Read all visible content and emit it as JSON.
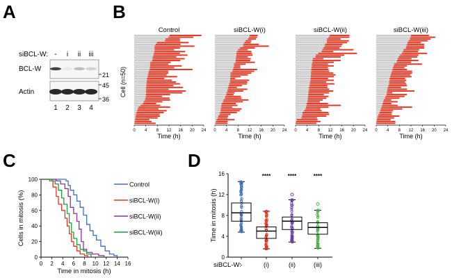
{
  "panels": {
    "A": {
      "letter": "A"
    },
    "B": {
      "letter": "B"
    },
    "C": {
      "letter": "C"
    },
    "D": {
      "letter": "D"
    }
  },
  "blot": {
    "condition_label": "siBCL-W:",
    "lanes": [
      "-",
      "i",
      "ii",
      "iii"
    ],
    "lane_numbers": [
      "1",
      "2",
      "3",
      "4"
    ],
    "rows": [
      {
        "label": "BCL-W",
        "markers": [
          "21"
        ],
        "band_intensity": [
          0.85,
          0.1,
          0.3,
          0.2
        ]
      },
      {
        "label": "Actin",
        "markers": [
          "45",
          "36"
        ],
        "band_intensity": [
          0.95,
          0.95,
          0.95,
          0.95
        ]
      }
    ]
  },
  "chart_data": [
    {
      "type": "bar",
      "panel": "B",
      "subtype": "cell-fate timeline (stacked horizontal: interphase gray, mitosis red)",
      "ylabel": "Cell (n=50)",
      "xlabel": "Time (h)",
      "xlim": [
        0,
        24
      ],
      "xticks": [
        0,
        4,
        8,
        12,
        16,
        20,
        24
      ],
      "colors": {
        "interphase": "#c8c8c8",
        "mitosis": "#e8321e"
      },
      "subpanels": [
        {
          "title": "Control",
          "mitosis_start": [
            12.2,
            11.8,
            10.8,
            10.6,
            7.8,
            7.4,
            7.0,
            7.0,
            7.0,
            6.9,
            6.8,
            6.6,
            6.4,
            6.3,
            6.2,
            5.6,
            5.5,
            5.5,
            5.4,
            5.3,
            5.0,
            4.9,
            4.8,
            4.6,
            4.4,
            4.3,
            4.3,
            4.2,
            4.2,
            4.1,
            4.1,
            4.1,
            4.1,
            4.0,
            4.0,
            3.8,
            3.7,
            3.3,
            3.0,
            2.2,
            1.5,
            1.2,
            1.0,
            0.8,
            0.6,
            0.5,
            0.4,
            0.3,
            0.2,
            0.1
          ],
          "mitosis_end": [
            23.2,
            20.4,
            15.8,
            15.8,
            18.8,
            16.0,
            20.8,
            15.8,
            13.8,
            17.6,
            15.8,
            18.4,
            14.6,
            17.4,
            15.9,
            12.6,
            11.8,
            16.4,
            13.8,
            20.1,
            11.8,
            11.8,
            11.2,
            14.8,
            10.4,
            13.0,
            14.4,
            15.8,
            13.5,
            16.8,
            11.9,
            17.8,
            16.6,
            12.4,
            9.6,
            12.2,
            12.4,
            9.7,
            7.6,
            9.0,
            12.4,
            8.4,
            11.2,
            10.2,
            8.8,
            8.9,
            8.1,
            5.2,
            6.0,
            7.4
          ]
        },
        {
          "title": "siBCL-W(i)",
          "mitosis_start": [
            12.0,
            11.8,
            11.4,
            10.6,
            10.2,
            9.8,
            9.7,
            8.6,
            8.0,
            7.6,
            7.4,
            7.4,
            7.3,
            7.2,
            7.2,
            7.1,
            6.6,
            6.6,
            6.4,
            6.2,
            6.0,
            5.4,
            5.4,
            5.3,
            5.3,
            5.2,
            5.2,
            4.9,
            4.8,
            4.6,
            4.4,
            4.3,
            4.0,
            3.9,
            3.6,
            3.4,
            3.0,
            2.8,
            2.4,
            2.2,
            2.2,
            2.0,
            2.0,
            1.8,
            1.6,
            1.2,
            1.0,
            0.6,
            0.4,
            0.2
          ],
          "mitosis_end": [
            14.8,
            14.6,
            14.2,
            12.6,
            12.4,
            15.2,
            18.6,
            13.8,
            11.4,
            12.6,
            12.8,
            13.0,
            11.4,
            12.4,
            12.2,
            13.8,
            10.6,
            8.8,
            8.8,
            14.6,
            13.6,
            12.6,
            11.4,
            8.9,
            7.0,
            11.8,
            11.2,
            11.1,
            9.4,
            7.6,
            11.2,
            9.8,
            6.8,
            6.4,
            9.0,
            9.2,
            11.6,
            9.6,
            7.2,
            7.8,
            6.0,
            9.2,
            8.6,
            7.6,
            5.4,
            4.6,
            4.4,
            6.8,
            4.4,
            4.4
          ]
        },
        {
          "title": "siBCL-W(ii)",
          "mitosis_start": [
            11.8,
            11.4,
            10.9,
            10.8,
            10.8,
            10.2,
            10.0,
            9.6,
            9.2,
            9.0,
            7.8,
            7.0,
            6.8,
            6.0,
            5.8,
            5.8,
            5.6,
            5.6,
            5.5,
            5.4,
            5.4,
            5.3,
            5.3,
            5.2,
            5.2,
            5.1,
            5.0,
            4.9,
            4.8,
            4.6,
            4.6,
            4.5,
            4.4,
            4.4,
            4.3,
            4.2,
            4.2,
            4.1,
            3.8,
            3.8,
            3.6,
            3.4,
            3.0,
            2.4,
            2.4,
            2.2,
            2.0,
            0.4,
            0.2,
            0.0
          ],
          "mitosis_end": [
            18.6,
            18.6,
            15.6,
            18.4,
            17.8,
            16.2,
            15.8,
            15.2,
            20.0,
            13.0,
            21.2,
            16.8,
            15.6,
            9.6,
            15.6,
            13.2,
            11.2,
            13.2,
            11.2,
            11.4,
            11.6,
            13.0,
            13.8,
            13.2,
            11.2,
            13.2,
            10.6,
            13.4,
            11.0,
            11.0,
            11.6,
            13.0,
            11.6,
            9.8,
            11.4,
            10.6,
            9.4,
            8.4,
            11.2,
            15.6,
            11.4,
            8.6,
            9.0,
            11.4,
            11.6,
            10.6,
            7.4,
            7.6,
            8.6,
            7.2
          ]
        },
        {
          "title": "siBCL-W(iii)",
          "mitosis_start": [
            12.0,
            11.8,
            11.6,
            11.2,
            10.8,
            10.6,
            10.4,
            10.2,
            9.4,
            9.2,
            8.8,
            8.2,
            7.8,
            7.4,
            7.2,
            7.0,
            6.2,
            6.0,
            5.8,
            5.6,
            5.4,
            5.2,
            5.0,
            4.8,
            4.6,
            4.6,
            4.4,
            4.4,
            4.2,
            4.0,
            3.8,
            3.8,
            3.6,
            3.6,
            3.2,
            3.0,
            2.6,
            2.4,
            2.2,
            2.0,
            1.8,
            1.6,
            1.4,
            1.2,
            0.8,
            0.6,
            0.4,
            0.2,
            0.1,
            0.0
          ],
          "mitosis_end": [
            18.2,
            20.4,
            18.8,
            17.8,
            15.4,
            16.6,
            16.6,
            16.6,
            14.8,
            14.4,
            17.6,
            14.6,
            14.2,
            12.2,
            14.6,
            12.0,
            15.8,
            10.6,
            9.8,
            10.6,
            12.4,
            12.4,
            11.8,
            12.2,
            10.0,
            10.4,
            10.0,
            10.4,
            10.6,
            8.6,
            10.6,
            13.2,
            5.6,
            10.6,
            9.8,
            8.0,
            5.2,
            7.4,
            5.2,
            7.4,
            12.4,
            9.0,
            5.8,
            5.4,
            5.4,
            8.0,
            6.2,
            5.0,
            6.6,
            6.6
          ]
        }
      ]
    },
    {
      "type": "line",
      "panel": "C",
      "subtype": "survival (step) curve",
      "xlabel": "Time in mitosis (h)",
      "ylabel": "Cells in mitosis (%)",
      "xlim": [
        0,
        16
      ],
      "ylim": [
        0,
        100
      ],
      "xticks": [
        0,
        2,
        4,
        6,
        8,
        10,
        12,
        14,
        16
      ],
      "yticks": [
        0,
        20,
        40,
        60,
        80,
        100
      ],
      "legend_position": "right",
      "series": [
        {
          "name": "Control",
          "color": "#3b6fc4",
          "x": [
            0,
            4.6,
            5.0,
            5.4,
            6.0,
            6.6,
            7.2,
            7.8,
            8.4,
            9.0,
            9.6,
            10.2,
            11.0,
            11.8,
            12.6,
            13.4,
            14.0
          ],
          "y": [
            100,
            98,
            92,
            86,
            80,
            72,
            64,
            54,
            42,
            34,
            28,
            22,
            14,
            8,
            4,
            2,
            0
          ]
        },
        {
          "name": "siBCL-W(i)",
          "color": "#e8321e",
          "x": [
            0,
            1.6,
            2.2,
            2.8,
            3.2,
            3.8,
            4.4,
            4.8,
            5.2,
            5.6,
            6.0,
            6.6,
            7.2,
            8.0,
            8.6
          ],
          "y": [
            100,
            98,
            90,
            78,
            68,
            60,
            50,
            40,
            30,
            20,
            14,
            8,
            4,
            2,
            0
          ]
        },
        {
          "name": "siBCL-W(ii)",
          "color": "#8b2fa8",
          "x": [
            0,
            2.8,
            3.6,
            4.4,
            5.0,
            5.4,
            6.0,
            6.6,
            7.0,
            7.4,
            7.8,
            8.4,
            9.4,
            10.6,
            11.6
          ],
          "y": [
            100,
            98,
            94,
            88,
            78,
            64,
            56,
            46,
            36,
            20,
            10,
            6,
            4,
            2,
            0
          ]
        },
        {
          "name": "siBCL-W(iii)",
          "color": "#1f9a3a",
          "x": [
            0,
            2.0,
            2.6,
            3.2,
            3.8,
            4.2,
            4.8,
            5.2,
            5.6,
            6.0,
            6.6,
            7.2,
            7.8,
            8.4,
            9.2
          ],
          "y": [
            100,
            98,
            94,
            86,
            76,
            68,
            56,
            44,
            32,
            24,
            16,
            10,
            8,
            4,
            0
          ]
        }
      ]
    },
    {
      "type": "scatter",
      "panel": "D",
      "subtype": "box plot with overlaid points",
      "ylabel": "Time in mitosis (h)",
      "xlabel_prefix": "siBCL-W:",
      "categories": [
        "-",
        "(i)",
        "(ii)",
        "(iii)"
      ],
      "ylim": [
        0,
        16
      ],
      "yticks": [
        0,
        4,
        8,
        12,
        16
      ],
      "significance": [
        "",
        "****",
        "****",
        "****"
      ],
      "boxes": [
        {
          "name": "-",
          "color": "#3b6fc4",
          "min": 4.8,
          "q1": 6.9,
          "median": 8.5,
          "q3": 10.4,
          "max": 14.5,
          "outliers": []
        },
        {
          "name": "(i)",
          "color": "#e8321e",
          "min": 1.6,
          "q1": 3.6,
          "median": 5.0,
          "q3": 5.8,
          "max": 8.8,
          "outliers": []
        },
        {
          "name": "(ii)",
          "color": "#6a3fa8",
          "min": 2.9,
          "q1": 5.3,
          "median": 6.9,
          "q3": 7.7,
          "max": 11.0,
          "outliers": [
            12.0
          ]
        },
        {
          "name": "(iii)",
          "color": "#4db84a",
          "min": 1.7,
          "q1": 4.4,
          "median": 5.7,
          "q3": 6.6,
          "max": 9.0,
          "outliers": [
            10.2
          ]
        }
      ]
    }
  ]
}
